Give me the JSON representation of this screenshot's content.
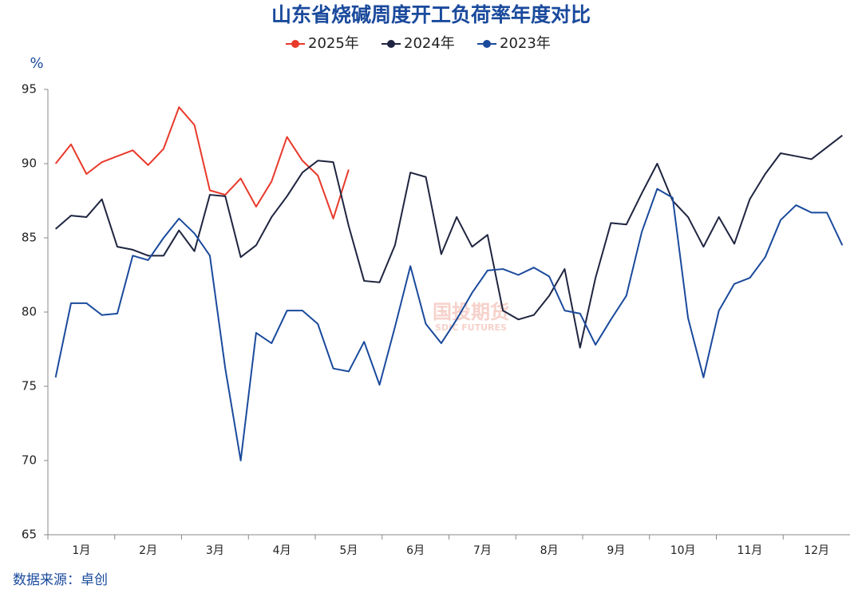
{
  "chart_data": {
    "type": "line",
    "title": "山东省烧碱周度开工负荷率年度对比",
    "y_label": "%",
    "source": "数据来源：卓创",
    "watermark": [
      "国投期货",
      "SDIC FUTURES"
    ],
    "categories": [
      "1月",
      "2月",
      "3月",
      "4月",
      "5月",
      "6月",
      "7月",
      "8月",
      "9月",
      "10月",
      "11月",
      "12月"
    ],
    "x": [
      1,
      2,
      3,
      4,
      5,
      6,
      7,
      8,
      9,
      10,
      11,
      12,
      13,
      14,
      15,
      16,
      17,
      18,
      19,
      20,
      21,
      22,
      23,
      24,
      25,
      26,
      27,
      28,
      29,
      30,
      31,
      32,
      33,
      34,
      35,
      36,
      37,
      38,
      39,
      40,
      41,
      42,
      43,
      44,
      45,
      46,
      47,
      48,
      49,
      50,
      51,
      52
    ],
    "xlim": [
      0.5,
      52.5
    ],
    "ylim": [
      65,
      95
    ],
    "yticks": [
      65,
      70,
      75,
      80,
      85,
      90,
      95
    ],
    "grid": false,
    "legend": "top",
    "series": [
      {
        "name": "2025年",
        "color": "#e8392a",
        "values": [
          90.0,
          91.3,
          89.3,
          90.1,
          90.5,
          90.9,
          89.9,
          91.0,
          93.8,
          92.6,
          88.2,
          87.9,
          89.0,
          87.1,
          88.8,
          91.8,
          90.2,
          89.2,
          86.3,
          89.6,
          null,
          null,
          null,
          null,
          null,
          null,
          null,
          null,
          null,
          null,
          null,
          null,
          null,
          null,
          null,
          null,
          null,
          null,
          null,
          null,
          null,
          null,
          null,
          null,
          null,
          null,
          null,
          null,
          null,
          null,
          null,
          null
        ]
      },
      {
        "name": "2024年",
        "color": "#1f2540",
        "values": [
          85.6,
          86.5,
          86.4,
          87.6,
          84.4,
          84.2,
          83.8,
          83.8,
          85.5,
          84.1,
          87.9,
          87.8,
          83.7,
          84.5,
          86.4,
          87.8,
          89.4,
          90.2,
          90.1,
          85.8,
          82.1,
          82.0,
          84.5,
          89.4,
          89.1,
          83.9,
          86.4,
          84.4,
          85.2,
          80.1,
          79.5,
          79.8,
          81.1,
          82.9,
          77.6,
          82.3,
          86.0,
          85.9,
          88.0,
          90.0,
          87.5,
          86.4,
          84.4,
          86.4,
          84.6,
          87.6,
          89.3,
          90.7,
          90.5,
          90.3,
          91.1,
          91.9
        ]
      },
      {
        "name": "2023年",
        "color": "#1a4a9c",
        "values": [
          75.6,
          80.6,
          80.6,
          79.8,
          79.9,
          83.8,
          83.5,
          85.0,
          86.3,
          85.3,
          83.8,
          76.2,
          70.0,
          78.6,
          77.9,
          80.1,
          80.1,
          79.2,
          76.2,
          76.0,
          78.0,
          75.1,
          79.0,
          83.1,
          79.2,
          77.9,
          79.5,
          81.3,
          82.8,
          82.9,
          82.5,
          83.0,
          82.4,
          80.1,
          79.9,
          77.8,
          79.5,
          81.1,
          85.4,
          88.3,
          87.7,
          79.6,
          75.6,
          80.1,
          81.9,
          82.3,
          83.7,
          86.2,
          87.2,
          86.7,
          86.7,
          84.5
        ]
      }
    ]
  }
}
